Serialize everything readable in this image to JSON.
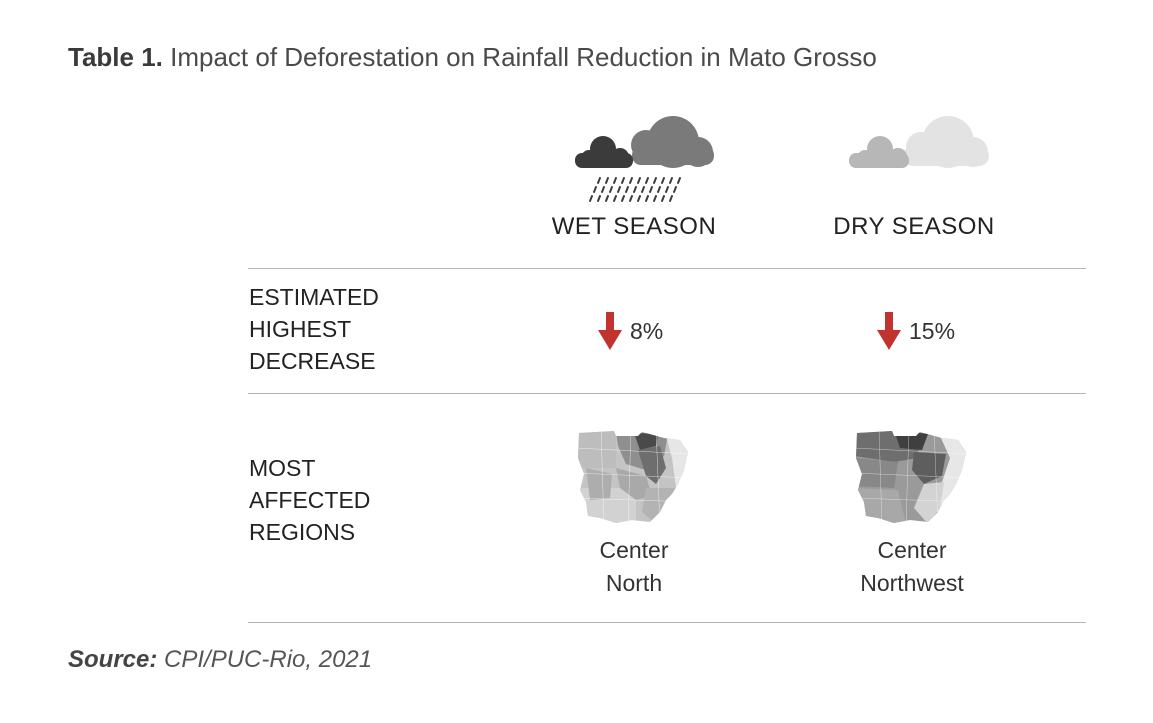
{
  "title": {
    "lead": "Table 1.",
    "text": "Impact of Deforestation on Rainfall Reduction in Mato Grosso"
  },
  "columns": {
    "wet": {
      "label": "WET SEASON",
      "icon": "rain-cloud-icon"
    },
    "dry": {
      "label": "DRY SEASON",
      "icon": "cloud-icon"
    }
  },
  "rows": {
    "decrease": {
      "label": [
        "ESTIMATED",
        "HIGHEST",
        "DECREASE"
      ],
      "wet_value": "8%",
      "dry_value": "15%",
      "arrow_color": "#c0332f",
      "arrow_icon": "down-arrow-icon"
    },
    "regions": {
      "label": [
        "MOST",
        "AFFECTED",
        "REGIONS"
      ],
      "wet_region": [
        "Center",
        "North"
      ],
      "dry_region": [
        "Center",
        "Northwest"
      ],
      "map_icon": "mato-grosso-map-icon"
    }
  },
  "source": {
    "lead": "Source:",
    "text": "CPI/PUC-Rio, 2021"
  }
}
